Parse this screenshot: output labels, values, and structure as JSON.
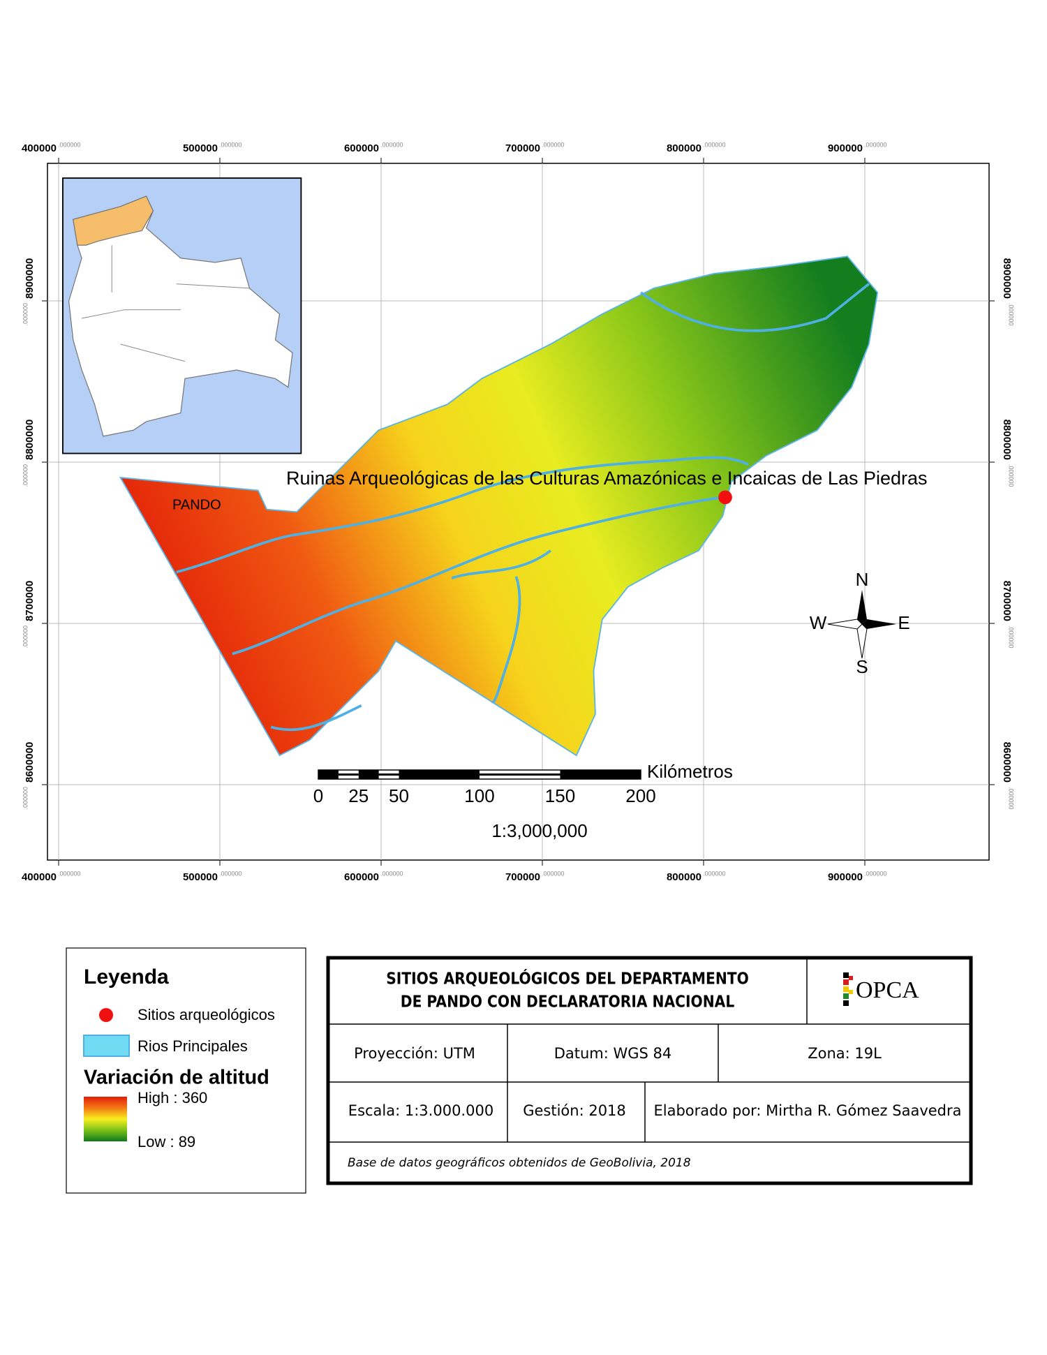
{
  "map": {
    "x_labels": [
      "400000",
      "500000",
      "600000",
      "700000",
      "800000",
      "900000"
    ],
    "y_labels": [
      "8600000",
      "8700000",
      "8800000",
      "8900000"
    ],
    "coordinate_decimals": ".000000",
    "region_label": "PANDO",
    "site_label": "Ruinas Arqueológicas de las Culturas Amazónicas e Incaicas de Las Piedras",
    "compass": {
      "n": "N",
      "s": "S",
      "e": "E",
      "w": "W"
    },
    "scale_bar": {
      "unit": "Kilómetros",
      "marks": [
        0,
        25,
        50,
        100,
        150,
        200
      ],
      "ratio": "1:3,000,000"
    }
  },
  "legend": {
    "title": "Leyenda",
    "items": [
      "Sitios arqueológicos",
      "Rios Principales"
    ],
    "elevation_title": "Variación de altitud",
    "high": "High : 360",
    "low": "Low : 89"
  },
  "title_block": {
    "title": [
      "SITIOS ARQUEOLÓGICOS DEL DEPARTAMENTO",
      "DE PANDO CON DECLARATORIA NACIONAL"
    ],
    "logo": "OPCA",
    "row1": [
      "Proyección: UTM",
      "Datum: WGS 84",
      "Zona: 19L"
    ],
    "row2": [
      "Escala: 1:3.000.000",
      "Gestión: 2018",
      "Elaborado por: Mirtha R. Gómez Saavedra"
    ],
    "source": "Base de datos geográficos obtenidos de GeoBolivia, 2018"
  }
}
